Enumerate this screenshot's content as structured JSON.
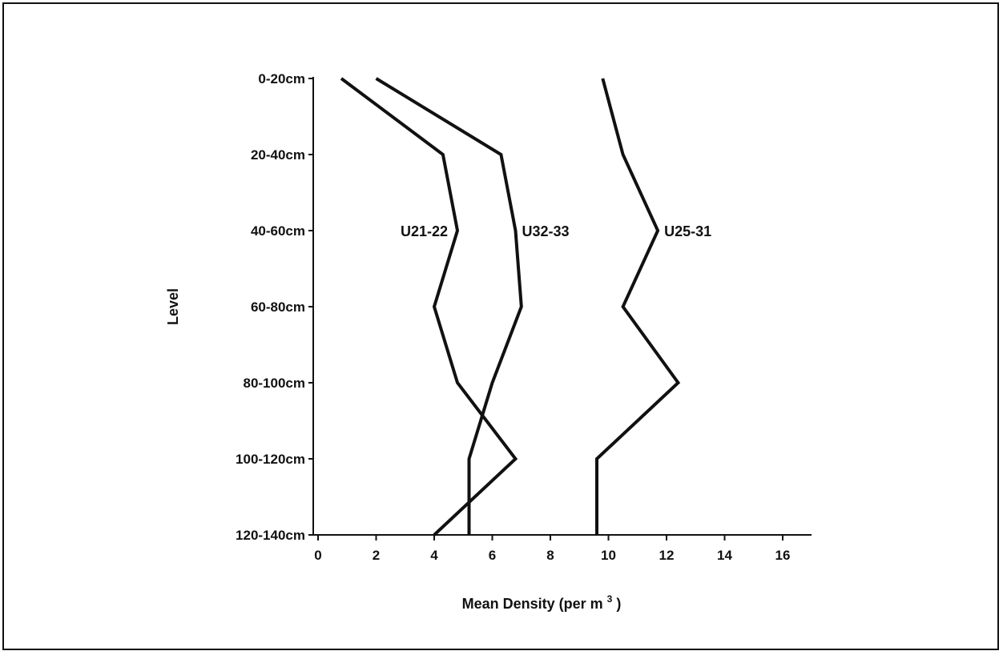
{
  "chart_data": {
    "type": "line",
    "orientation": "horizontal-profile",
    "xlabel": "Mean Density (per m",
    "xlabel_superscript": "3",
    "xlabel_suffix": ")",
    "ylabel": "Level",
    "xlim": [
      0,
      17
    ],
    "x_ticks": [
      0,
      2,
      4,
      6,
      8,
      10,
      12,
      14,
      16
    ],
    "categories": [
      "0-20cm",
      "20-40cm",
      "40-60cm",
      "60-80cm",
      "80-100cm",
      "100-120cm",
      "120-140cm"
    ],
    "grid": false,
    "legend": "none",
    "series_color": "#111111",
    "series": [
      {
        "name": "U21-22",
        "values": [
          0.8,
          4.3,
          4.8,
          4.0,
          4.8,
          6.8,
          4.0
        ]
      },
      {
        "name": "U32-33",
        "values": [
          2.0,
          6.3,
          6.8,
          7.0,
          6.0,
          5.2,
          5.2
        ]
      },
      {
        "name": "U25-31",
        "values": [
          9.8,
          10.5,
          11.7,
          10.5,
          12.4,
          9.6,
          9.6
        ]
      }
    ],
    "series_label_level": "40-60cm"
  }
}
